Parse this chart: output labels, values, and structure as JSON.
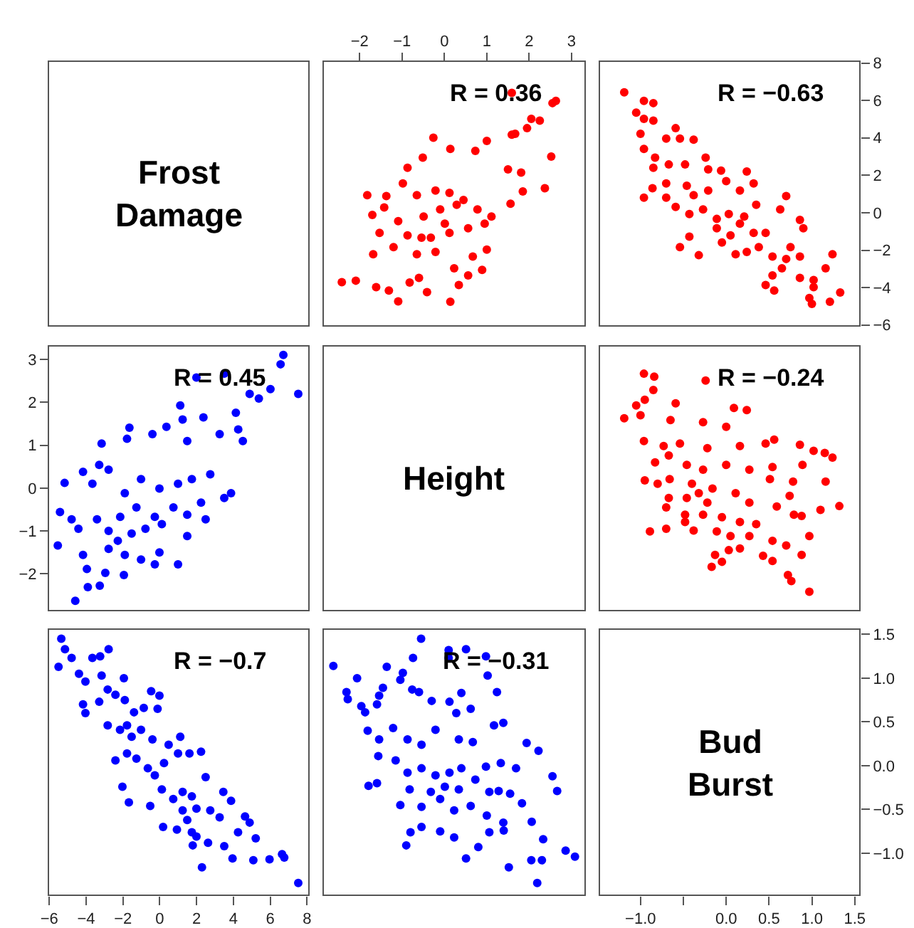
{
  "chart_data": [
    {
      "type": "other",
      "title": "Frost Damage"
    },
    {
      "type": "scatter",
      "color": "#ff0000",
      "marker": "circle",
      "annotations": [
        "R = 0.36"
      ],
      "xlim": [
        -2.86,
        3.32
      ],
      "xticks": [
        -2,
        -1,
        0,
        1,
        2,
        3
      ],
      "ylim": [
        -6.05,
        8.1
      ],
      "tick_labels": "x",
      "x": [
        1.59,
        2.63,
        2.55,
        2.05,
        2.25,
        1.95,
        1.67,
        1.59,
        2.52,
        -0.26,
        0.14,
        1.0,
        0.73,
        -0.51,
        -0.87,
        1.81,
        1.5,
        2.37,
        1.85,
        -1.82,
        -1.37,
        -0.98,
        -0.65,
        -0.21,
        0.12,
        0.45,
        0.78,
        1.11,
        1.56,
        -1.42,
        -1.7,
        -1.09,
        -0.49,
        0.01,
        0.56,
        0.95,
        -1.53,
        -0.87,
        -0.32,
        0.12,
        -1.2,
        -0.65,
        -0.21,
        0.67,
        1.0,
        -1.68,
        0.23,
        0.89,
        0.56,
        -2.42,
        -2.09,
        -1.61,
        -0.82,
        -0.6,
        -0.41,
        -1.31,
        -1.09,
        0.14,
        0.34,
        -0.54,
        -0.1,
        0.29
      ],
      "values": [
        6.41,
        5.98,
        5.86,
        5.02,
        4.92,
        4.52,
        4.22,
        4.17,
        3.0,
        4.01,
        3.41,
        3.84,
        3.31,
        2.95,
        2.4,
        2.15,
        2.32,
        1.31,
        1.14,
        0.94,
        0.89,
        1.57,
        0.94,
        1.19,
        1.06,
        0.68,
        0.18,
        -0.2,
        0.48,
        0.28,
        -0.12,
        -0.45,
        -0.2,
        -0.58,
        -0.83,
        -0.58,
        -1.08,
        -1.21,
        -1.33,
        -1.08,
        -1.84,
        -2.22,
        -2.09,
        -2.34,
        -1.97,
        -2.22,
        -2.97,
        -3.05,
        -3.35,
        -3.71,
        -3.63,
        -3.98,
        -3.73,
        -3.48,
        -4.24,
        -4.16,
        -4.74,
        -4.76,
        -3.86,
        -1.33,
        0.18,
        0.43
      ]
    },
    {
      "type": "scatter",
      "color": "#ff0000",
      "marker": "circle",
      "annotations": [
        "R = −0.63"
      ],
      "xlim": [
        -1.48,
        1.56
      ],
      "ylim": [
        -6.05,
        8.1
      ],
      "tick_labels": "y",
      "yticks": [
        -6,
        -4,
        -2,
        0,
        2,
        4,
        6,
        8
      ],
      "x": [
        -1.19,
        -0.96,
        -0.85,
        -1.05,
        -0.96,
        -0.85,
        -1.0,
        -0.59,
        -0.7,
        -0.54,
        -0.38,
        -0.96,
        -0.83,
        -0.85,
        -0.67,
        -0.48,
        -0.24,
        -0.21,
        -0.06,
        0.24,
        -0.96,
        -0.86,
        -0.7,
        -0.46,
        -0.38,
        -0.21,
        0.0,
        0.16,
        0.32,
        -0.7,
        -0.59,
        -0.43,
        -0.27,
        -0.11,
        0.03,
        0.21,
        0.35,
        0.7,
        0.63,
        -0.11,
        0.05,
        0.16,
        0.32,
        0.46,
        0.86,
        0.9,
        -0.43,
        -0.54,
        -0.32,
        -0.05,
        0.11,
        0.24,
        0.38,
        0.54,
        0.75,
        0.7,
        0.86,
        1.24,
        0.54,
        0.65,
        0.86,
        1.02,
        1.16,
        0.46,
        0.56,
        0.97,
        1.0,
        1.21,
        1.33,
        1.02
      ],
      "values": [
        6.44,
        5.98,
        5.86,
        5.35,
        5.02,
        4.92,
        4.22,
        4.52,
        3.96,
        3.96,
        3.91,
        3.41,
        2.95,
        2.4,
        2.58,
        2.58,
        2.95,
        2.32,
        2.25,
        2.2,
        0.81,
        1.31,
        1.57,
        1.44,
        0.94,
        1.19,
        1.69,
        1.19,
        1.57,
        0.81,
        0.31,
        -0.07,
        0.18,
        -0.33,
        -0.07,
        -0.2,
        0.43,
        0.89,
        0.18,
        -0.83,
        -1.21,
        -0.58,
        -1.08,
        -1.08,
        -0.38,
        -0.83,
        -1.28,
        -1.84,
        -2.27,
        -1.59,
        -2.22,
        -2.09,
        -1.84,
        -2.34,
        -1.84,
        -2.47,
        -2.34,
        -2.22,
        -3.35,
        -2.97,
        -3.48,
        -3.6,
        -2.97,
        -3.86,
        -4.16,
        -4.56,
        -4.87,
        -4.76,
        -4.26,
        -3.98
      ]
    },
    {
      "type": "scatter",
      "color": "#0000ff",
      "marker": "circle",
      "annotations": [
        "R = 0.45"
      ],
      "xlim": [
        -6.05,
        8.1
      ],
      "tick_labels": "y",
      "ylim": [
        -2.86,
        3.32
      ],
      "yticks": [
        -2,
        -1,
        0,
        1,
        2,
        3
      ],
      "x": [
        6.71,
        6.56,
        7.52,
        6.01,
        5.38,
        4.88,
        3.5,
        1.99,
        1.11,
        1.24,
        2.37,
        4.13,
        4.26,
        4.51,
        3.25,
        1.49,
        0.36,
        -0.4,
        -1.78,
        -1.65,
        -3.16,
        -3.29,
        -4.17,
        -5.17,
        -3.66,
        -2.78,
        -1.9,
        -1.02,
        -0.02,
        0.99,
        1.74,
        2.74,
        3.5,
        3.87,
        2.24,
        1.49,
        0.74,
        -0.27,
        -1.27,
        -2.15,
        -5.42,
        -4.79,
        -5.54,
        -4.42,
        -3.41,
        -2.78,
        -2.28,
        -1.53,
        -0.78,
        0.11,
        1.49,
        2.49,
        -4.17,
        -2.78,
        -1.9,
        -1.02,
        -0.02,
        0.99,
        -3.96,
        -2.96,
        -1.95,
        -3.91,
        -3.26,
        -4.59,
        -0.27
      ],
      "values": [
        3.11,
        2.89,
        2.2,
        2.31,
        2.09,
        2.2,
        2.67,
        2.58,
        1.93,
        1.6,
        1.65,
        1.76,
        1.37,
        1.1,
        1.26,
        1.1,
        1.43,
        1.26,
        1.15,
        1.41,
        1.04,
        0.54,
        0.38,
        0.12,
        0.1,
        0.43,
        -0.12,
        0.21,
        -0.01,
        0.1,
        0.21,
        0.32,
        -0.23,
        -0.12,
        -0.34,
        -0.62,
        -0.45,
        -0.67,
        -0.45,
        -0.67,
        -0.56,
        -0.73,
        -1.34,
        -0.95,
        -0.73,
        -1.0,
        -1.23,
        -1.06,
        -0.95,
        -0.84,
        -1.12,
        -0.73,
        -1.56,
        -1.42,
        -1.56,
        -1.67,
        -1.5,
        -1.78,
        -1.89,
        -1.98,
        -2.03,
        -2.31,
        -2.28,
        -2.63,
        -1.78
      ]
    },
    {
      "type": "other",
      "title": "Height"
    },
    {
      "type": "scatter",
      "color": "#ff0000",
      "marker": "circle",
      "annotations": [
        "R = −0.24"
      ],
      "xlim": [
        -1.48,
        1.56
      ],
      "ylim": [
        -2.86,
        3.32
      ],
      "tick_labels": false,
      "x": [
        -0.96,
        -0.84,
        -0.85,
        -1.05,
        -0.95,
        -1.19,
        -1.0,
        -0.59,
        -0.24,
        0.09,
        0.24,
        -0.65,
        -0.27,
        0.0,
        -0.96,
        -0.73,
        -0.54,
        -0.22,
        0.16,
        0.46,
        0.56,
        0.86,
        1.02,
        1.15,
        1.24,
        -0.83,
        -0.67,
        -0.46,
        -0.27,
        0.0,
        0.27,
        0.54,
        0.89,
        -0.95,
        -0.8,
        -0.66,
        -0.4,
        -0.32,
        -0.16,
        -0.46,
        -0.22,
        0.11,
        0.27,
        0.51,
        0.78,
        1.16,
        0.74,
        -0.67,
        -0.7,
        -0.48,
        -0.27,
        -0.05,
        0.16,
        0.35,
        0.59,
        0.79,
        0.88,
        1.1,
        1.32,
        -0.89,
        -0.7,
        -0.48,
        -0.38,
        -0.11,
        0.05,
        0.27,
        0.54,
        0.7,
        0.97,
        0.03,
        0.16,
        0.43,
        0.54,
        0.88,
        -0.13,
        -0.05,
        -0.17,
        0.72,
        0.76,
        0.97
      ],
      "values": [
        2.67,
        2.6,
        2.29,
        1.93,
        2.06,
        1.63,
        1.7,
        1.98,
        2.51,
        1.87,
        1.82,
        1.59,
        1.54,
        1.43,
        1.1,
        0.98,
        1.04,
        0.93,
        0.98,
        1.04,
        1.13,
        1.01,
        0.87,
        0.82,
        0.71,
        0.6,
        0.76,
        0.54,
        0.43,
        0.54,
        0.43,
        0.49,
        0.54,
        0.18,
        0.1,
        0.21,
        0.1,
        -0.12,
        -0.01,
        -0.23,
        -0.34,
        -0.12,
        -0.34,
        0.21,
        0.15,
        0.15,
        -0.18,
        -0.23,
        -0.45,
        -0.62,
        -0.62,
        -0.68,
        -0.79,
        -0.84,
        -0.43,
        -0.62,
        -0.65,
        -0.51,
        -0.42,
        -1.01,
        -0.95,
        -0.79,
        -0.99,
        -1.01,
        -1.12,
        -1.12,
        -1.23,
        -1.34,
        -1.12,
        -1.45,
        -1.41,
        -1.58,
        -1.7,
        -1.56,
        -1.56,
        -1.72,
        -1.84,
        -2.03,
        -2.17,
        -2.42
      ]
    },
    {
      "type": "scatter",
      "color": "#0000ff",
      "marker": "circle",
      "annotations": [
        "R = −0.7"
      ],
      "xlim": [
        -6.05,
        8.1
      ],
      "xticks": [
        -6,
        -4,
        -2,
        0,
        2,
        4,
        6,
        8
      ],
      "ylim": [
        -1.48,
        1.56
      ],
      "tick_labels": "x",
      "x": [
        -5.35,
        -5.5,
        -5.15,
        -4.79,
        -4.39,
        -3.66,
        -3.24,
        -2.78,
        -3.16,
        -4.04,
        -4.17,
        -4.04,
        -3.29,
        -2.83,
        -2.41,
        -1.95,
        -1.9,
        -1.4,
        -0.87,
        -0.47,
        -0.02,
        -0.12,
        -2.83,
        -2.16,
        -1.78,
        -1.53,
        -1.02,
        -0.4,
        0.48,
        1.11,
        -2.41,
        -1.78,
        -1.27,
        -0.65,
        -0.27,
        0.23,
        0.99,
        1.61,
        2.24,
        -2.03,
        -1.68,
        -0.52,
        0.11,
        0.73,
        1.24,
        1.74,
        1.99,
        2.49,
        3.45,
        1.24,
        1.49,
        3.87,
        2.74,
        3.25,
        4.63,
        0.18,
        0.93,
        1.74,
        1.99,
        2.62,
        3.5,
        4.25,
        4.88,
        5.21,
        1.79,
        3.95,
        5.08,
        5.96,
        6.64,
        6.76,
        2.29,
        7.52
      ],
      "values": [
        1.45,
        1.13,
        1.33,
        1.23,
        1.05,
        1.23,
        1.25,
        1.33,
        1.03,
        0.96,
        0.7,
        0.6,
        0.73,
        0.87,
        0.81,
        1.0,
        0.75,
        0.61,
        0.66,
        0.85,
        0.8,
        0.65,
        0.46,
        0.41,
        0.46,
        0.33,
        0.41,
        0.3,
        0.24,
        0.33,
        0.06,
        0.14,
        0.08,
        -0.03,
        -0.11,
        0.03,
        0.14,
        0.14,
        0.16,
        -0.24,
        -0.42,
        -0.46,
        -0.27,
        -0.38,
        -0.3,
        -0.35,
        -0.49,
        -0.13,
        -0.3,
        -0.51,
        -0.62,
        -0.4,
        -0.51,
        -0.59,
        -0.58,
        -0.7,
        -0.73,
        -0.76,
        -0.81,
        -0.88,
        -0.92,
        -0.76,
        -0.65,
        -0.83,
        -0.91,
        -1.06,
        -1.08,
        -1.07,
        -1.01,
        -1.05,
        -1.16,
        -1.34
      ]
    },
    {
      "type": "scatter",
      "color": "#0000ff",
      "marker": "circle",
      "annotations": [
        "R = −0.31"
      ],
      "xlim": [
        -2.86,
        3.32
      ],
      "ylim": [
        -1.48,
        1.56
      ],
      "tick_labels": false,
      "x": [
        -2.62,
        -0.55,
        -1.36,
        -2.06,
        -2.31,
        -2.28,
        -1.96,
        -1.87,
        -1.59,
        -1.54,
        -1.45,
        -1.04,
        -0.98,
        -0.74,
        0.1,
        0.1,
        0.51,
        0.98,
        1.02,
        1.24,
        -0.76,
        -0.6,
        -0.3,
        0.12,
        0.4,
        0.28,
        0.62,
        -1.81,
        -1.54,
        -1.21,
        -0.87,
        -0.54,
        -0.21,
        0.34,
        0.67,
        1.17,
        1.39,
        1.94,
        2.22,
        -1.56,
        -1.15,
        -0.87,
        -0.54,
        -0.21,
        0.12,
        0.4,
        0.73,
        0.98,
        1.33,
        1.69,
        -1.79,
        -1.59,
        -0.82,
        -0.32,
        0.01,
        0.34,
        1.06,
        1.28,
        1.55,
        2.55,
        2.66,
        -1.04,
        -0.54,
        -0.1,
        0.23,
        0.62,
        1.0,
        1.39,
        1.83,
        2.06,
        -0.8,
        -0.54,
        -0.1,
        0.23,
        0.8,
        1.06,
        1.4,
        -0.9,
        0.51,
        2.33,
        2.86,
        3.08,
        2.05,
        2.3,
        1.52,
        2.19
      ],
      "values": [
        1.14,
        1.45,
        1.13,
        1.0,
        0.84,
        0.76,
        0.68,
        0.61,
        0.7,
        0.8,
        0.89,
        0.98,
        1.06,
        1.23,
        1.32,
        1.23,
        1.33,
        1.25,
        1.03,
        0.84,
        0.87,
        0.84,
        0.74,
        0.73,
        0.83,
        0.6,
        0.65,
        0.4,
        0.3,
        0.43,
        0.3,
        0.24,
        0.41,
        0.3,
        0.27,
        0.46,
        0.49,
        0.26,
        0.17,
        0.11,
        0.06,
        -0.08,
        -0.03,
        -0.11,
        -0.08,
        -0.03,
        -0.16,
        -0.01,
        0.03,
        -0.03,
        -0.23,
        -0.2,
        -0.27,
        -0.3,
        -0.24,
        -0.27,
        -0.3,
        -0.29,
        -0.32,
        -0.12,
        -0.29,
        -0.45,
        -0.47,
        -0.38,
        -0.51,
        -0.46,
        -0.57,
        -0.65,
        -0.43,
        -0.64,
        -0.76,
        -0.7,
        -0.75,
        -0.82,
        -0.93,
        -0.76,
        -0.74,
        -0.91,
        -1.06,
        -0.84,
        -0.97,
        -1.04,
        -1.08,
        -1.08,
        -1.16,
        -1.34
      ]
    },
    {
      "type": "scatter",
      "title": "Bud Burst",
      "xlim": [
        -1.48,
        1.56
      ],
      "xticks": [
        {
          "value": -1,
          "label": "−1.0"
        },
        {
          "value": -0.5,
          "label": null
        },
        {
          "value": 0,
          "label": "0.0"
        },
        {
          "value": 0.5,
          "label": "0.5"
        },
        {
          "value": 1,
          "label": "1.0"
        },
        {
          "value": 1.5,
          "label": "1.5"
        }
      ],
      "ylim": [
        -1.48,
        1.56
      ],
      "yticks": [
        {
          "value": -1,
          "label": "−1.0"
        },
        {
          "value": -0.5,
          "label": "−0.5"
        },
        {
          "value": 0,
          "label": "0.0"
        },
        {
          "value": 0.5,
          "label": "0.5"
        },
        {
          "value": 1,
          "label": "1.0"
        },
        {
          "value": 1.5,
          "label": "1.5"
        }
      ]
    }
  ]
}
